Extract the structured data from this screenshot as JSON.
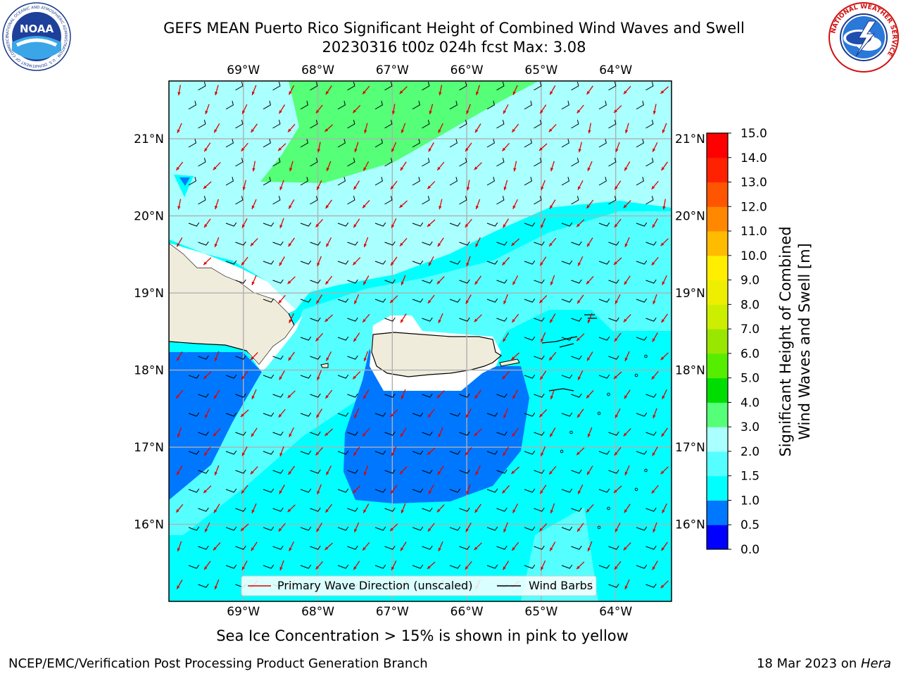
{
  "header": {
    "title_line1": "GEFS MEAN Puerto Rico Significant Height of Combined Wind Waves and Swell",
    "title_line2": "20230316 t00z 024h fcst   Max: 3.08"
  },
  "logos": {
    "noaa_text": "NOAA",
    "noaa_ring": "NATIONAL OCEANIC AND ATMOSPHERIC ADMINISTRATION · U.S. DEPARTMENT OF COMMERCE",
    "nws_ring": "NATIONAL WEATHER SERVICE"
  },
  "map": {
    "lon_labels": [
      "69°W",
      "68°W",
      "67°W",
      "66°W",
      "65°W",
      "64°W"
    ],
    "lat_labels": [
      "21°N",
      "20°N",
      "19°N",
      "18°N",
      "17°N",
      "16°N"
    ],
    "lon_range": [
      -70.0,
      -63.25
    ],
    "lat_range": [
      15.0,
      21.75
    ],
    "legend": {
      "wave_label": "Primary Wave Direction (unscaled)",
      "barb_label": "Wind Barbs",
      "wave_color": "#e00000",
      "barb_color": "#000000"
    },
    "colors": {
      "land": "#efecdc",
      "land_border": "#000000",
      "sea_ice_note_background": "#ffffff",
      "grid": "#b0b0b0"
    }
  },
  "colorbar": {
    "label_line1": "Significant Height of Combined",
    "label_line2": "Wind Waves and Swell [m]",
    "ticks": [
      "0.0",
      "0.5",
      "1.0",
      "1.5",
      "2.0",
      "3.0",
      "4.0",
      "5.0",
      "6.0",
      "7.0",
      "8.0",
      "9.0",
      "10.0",
      "11.0",
      "12.0",
      "13.0",
      "14.0",
      "15.0"
    ],
    "colors": [
      "#0000ff",
      "#0077ff",
      "#00ffff",
      "#55ffff",
      "#aaffff",
      "#55ff77",
      "#00dd00",
      "#55ee00",
      "#99e600",
      "#ccee00",
      "#eeee00",
      "#ffee00",
      "#ffbb00",
      "#ff8800",
      "#ff5500",
      "#ff2200",
      "#ff0000"
    ]
  },
  "notes": {
    "sea_ice": "Sea Ice Concentration > 15% is shown in pink to yellow"
  },
  "footer": {
    "left": "NCEP/EMC/Verification Post Processing Product Generation Branch",
    "right_prefix": "18 Mar 2023 on ",
    "right_host": "Hera"
  }
}
